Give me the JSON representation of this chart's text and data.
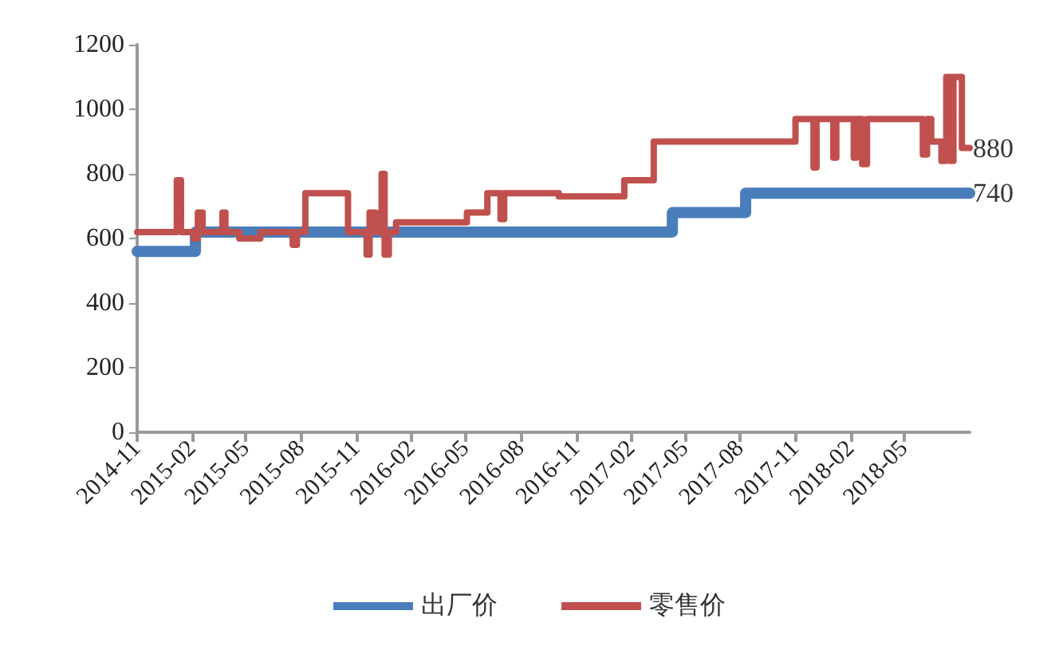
{
  "chart_data": {
    "type": "step",
    "xlim": [
      "2014-11-01",
      "2018-08-18"
    ],
    "xticks": [
      "2014-11",
      "2015-02",
      "2015-05",
      "2015-08",
      "2015-11",
      "2016-02",
      "2016-05",
      "2016-08",
      "2016-11",
      "2017-02",
      "2017-05",
      "2017-08",
      "2017-11",
      "2018-02",
      "2018-05"
    ],
    "ylim": [
      0,
      1200
    ],
    "yticks": [
      0,
      200,
      400,
      600,
      800,
      1000,
      1200
    ],
    "grid": false,
    "legend": "bottom",
    "marker": "none",
    "line_style": "solid",
    "series": [
      {
        "name": "出厂价",
        "color": "#4a7ebb",
        "x": [
          "2014-11-01",
          "2015-02-06",
          "2017-04-10",
          "2017-08-10",
          "2018-08-18"
        ],
        "values": [
          560,
          620,
          680,
          740,
          740
        ]
      },
      {
        "name": "零售价",
        "color": "#c0504d",
        "x": [
          "2014-11-01",
          "2015-01-06",
          "2015-01-13",
          "2015-02-03",
          "2015-02-10",
          "2015-02-18",
          "2015-03-23",
          "2015-03-28",
          "2015-04-20",
          "2015-05-25",
          "2015-06-01",
          "2015-07-18",
          "2015-07-25",
          "2015-08-08",
          "2015-10-18",
          "2015-11-18",
          "2015-11-23",
          "2015-12-03",
          "2015-12-13",
          "2015-12-18",
          "2015-12-25",
          "2016-01-06",
          "2016-05-03",
          "2016-06-06",
          "2016-06-28",
          "2016-07-04",
          "2016-10-03",
          "2017-01-20",
          "2017-03-10",
          "2017-11-01",
          "2017-12-01",
          "2017-12-06",
          "2018-01-03",
          "2018-01-08",
          "2018-02-06",
          "2018-02-10",
          "2018-02-20",
          "2018-02-28",
          "2018-06-01",
          "2018-06-08",
          "2018-06-15",
          "2018-07-02",
          "2018-07-10",
          "2018-07-17",
          "2018-07-22",
          "2018-08-05",
          "2018-08-18"
        ],
        "values": [
          620,
          780,
          620,
          600,
          680,
          620,
          680,
          620,
          600,
          620,
          620,
          580,
          620,
          740,
          620,
          550,
          680,
          620,
          800,
          550,
          620,
          650,
          680,
          740,
          660,
          740,
          730,
          780,
          900,
          970,
          820,
          970,
          850,
          970,
          850,
          970,
          830,
          970,
          860,
          970,
          900,
          840,
          1100,
          840,
          1100,
          880,
          880
        ]
      }
    ],
    "annotations": [
      {
        "text": "880",
        "x": "2018-08-18",
        "y": 880
      },
      {
        "text": "740",
        "x": "2018-08-18",
        "y": 740
      }
    ]
  }
}
